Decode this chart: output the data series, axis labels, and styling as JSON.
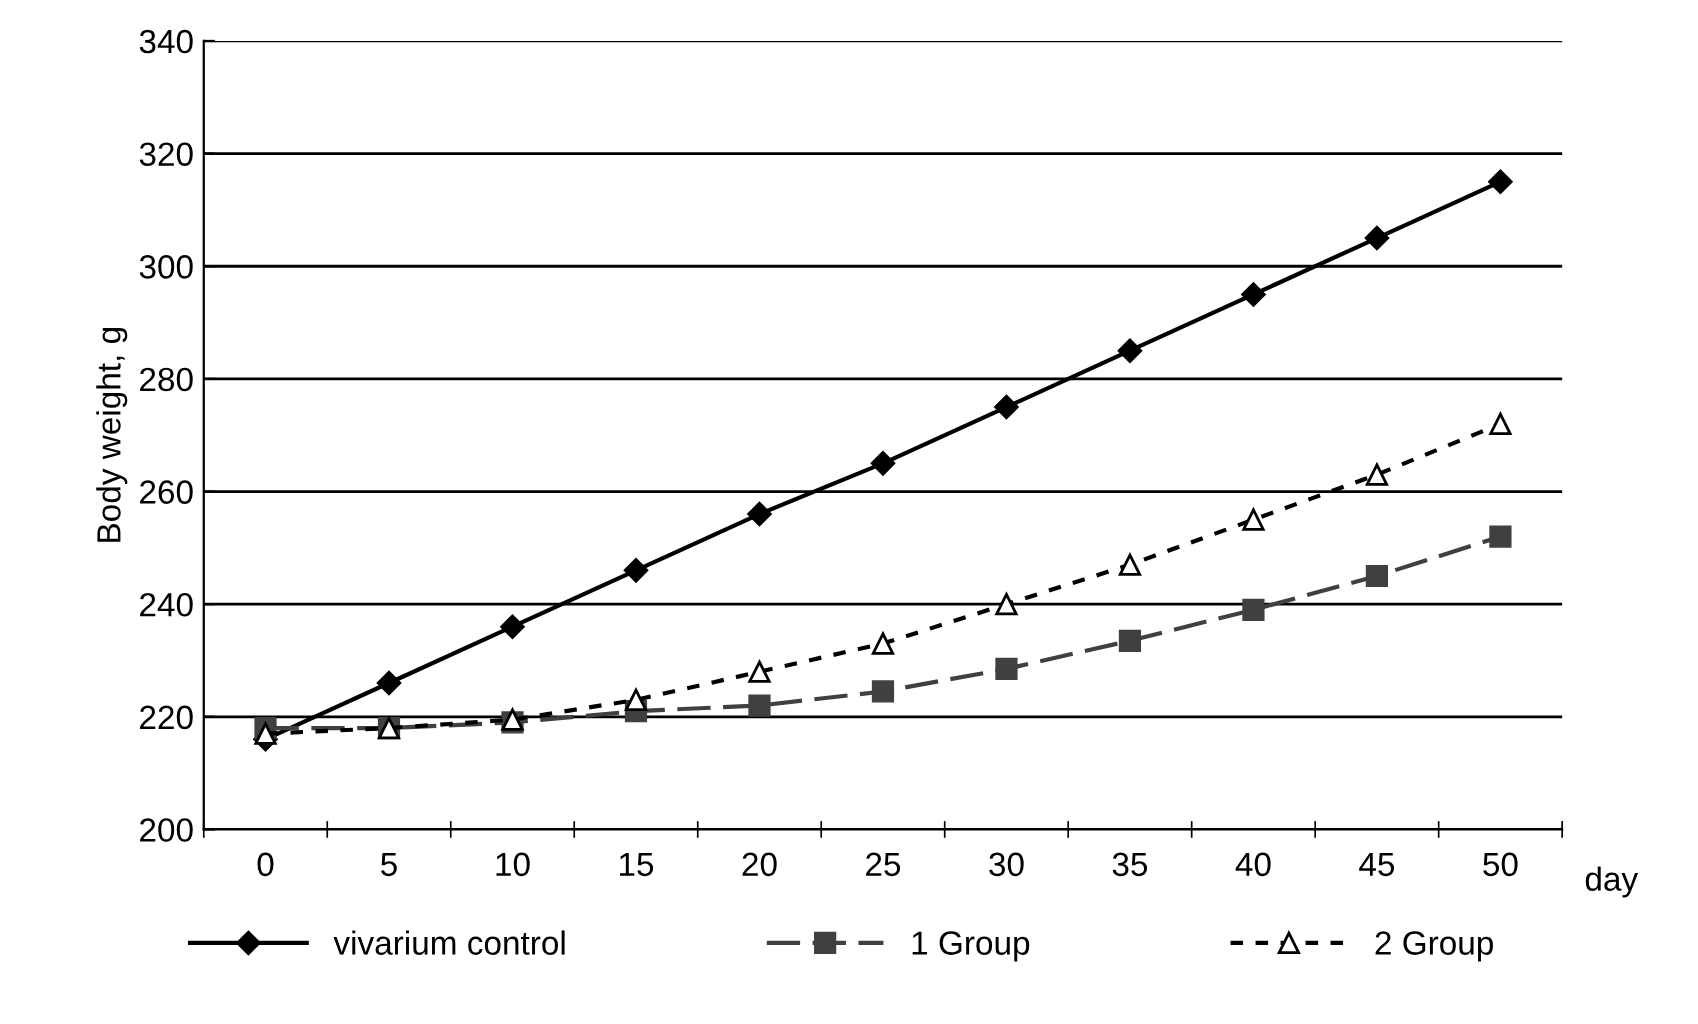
{
  "chart_data": {
    "type": "line",
    "xlabel": "day",
    "ylabel": "Body weight, g",
    "categories": [
      "0",
      "5",
      "10",
      "15",
      "20",
      "25",
      "30",
      "35",
      "40",
      "45",
      "50"
    ],
    "series": [
      {
        "name": "vivarium control",
        "color": "#000000",
        "marker": "diamond",
        "line_style": "solid",
        "values": [
          216,
          226,
          236,
          246,
          256,
          265,
          275,
          285,
          295,
          305,
          315
        ]
      },
      {
        "name": "1 Group",
        "color": "#404040",
        "marker": "square",
        "line_style": "dashed",
        "values": [
          218,
          218,
          219,
          221,
          222,
          224.5,
          228.5,
          233.5,
          239,
          245,
          252
        ]
      },
      {
        "name": "2 Group",
        "color": "#000000",
        "marker": "triangle",
        "line_style": "dotted",
        "values": [
          217,
          218,
          219.5,
          223,
          228,
          233,
          240,
          247,
          255,
          263,
          272
        ]
      }
    ],
    "ylim": [
      200,
      340
    ],
    "yticks": [
      200,
      220,
      240,
      260,
      280,
      300,
      320,
      340
    ],
    "grid": "y",
    "legend": "bottom"
  }
}
